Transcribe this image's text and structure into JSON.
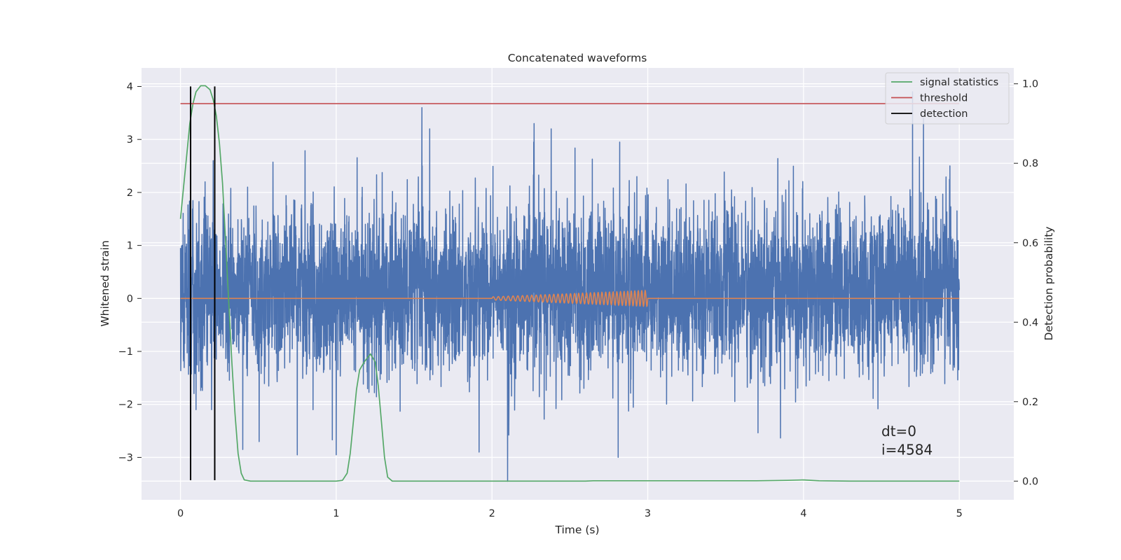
{
  "chart_data": {
    "type": "line",
    "title": "Concatenated waveforms",
    "xlabel": "Time (s)",
    "ylabel": "Whitened strain",
    "y2label": "Detection probability",
    "xlim": [
      -0.25,
      5.35
    ],
    "ylim": [
      -3.8,
      4.35
    ],
    "y2lim": [
      -0.047,
      1.04
    ],
    "xticks": [
      0,
      1,
      2,
      3,
      4,
      5
    ],
    "yticks": [
      -3,
      -2,
      -1,
      0,
      1,
      2,
      3,
      4
    ],
    "y2ticks": [
      0.0,
      0.2,
      0.4,
      0.6,
      0.8,
      1.0
    ],
    "xtick_labels": [
      "0",
      "1",
      "2",
      "3",
      "4",
      "5"
    ],
    "ytick_labels": [
      "−3",
      "−2",
      "−1",
      "0",
      "1",
      "2",
      "3",
      "4"
    ],
    "y2tick_labels": [
      "0.0",
      "0.2",
      "0.4",
      "0.6",
      "0.8",
      "1.0"
    ],
    "grid": true,
    "legend_position": "top-right",
    "series": [
      {
        "kind": "noise",
        "axis": "left",
        "color": "#4c72b0",
        "x_range": [
          0,
          5
        ],
        "typical_range": [
          -1.8,
          2.3
        ],
        "peaks": [
          {
            "x": 0.21,
            "y": 2.6
          },
          {
            "x": 1.55,
            "y": 3.6
          },
          {
            "x": 1.6,
            "y": 3.2
          },
          {
            "x": 2.27,
            "y": 3.3
          },
          {
            "x": 2.38,
            "y": 3.2
          },
          {
            "x": 2.82,
            "y": 2.95
          },
          {
            "x": 4.7,
            "y": 3.9
          },
          {
            "x": 4.77,
            "y": 3.4
          },
          {
            "x": 2.1,
            "y": -3.45
          },
          {
            "x": 2.81,
            "y": -3.0
          },
          {
            "x": 0.75,
            "y": -2.95
          },
          {
            "x": 1.0,
            "y": -2.95
          },
          {
            "x": 0.4,
            "y": -2.85
          },
          {
            "x": 0.1,
            "y": -2.1
          },
          {
            "x": 0.2,
            "y": -2.1
          }
        ]
      },
      {
        "kind": "chirp",
        "axis": "left",
        "color": "#dd8452",
        "x_range": [
          0,
          5
        ],
        "chirp_range": [
          2.0,
          3.0
        ],
        "amplitude_start": 0.03,
        "amplitude_end": 0.15,
        "cycles": 38
      },
      {
        "name": "signal statistics",
        "axis": "right",
        "color": "#55a868",
        "points": [
          [
            0,
            0.66
          ],
          [
            0.02,
            0.74
          ],
          [
            0.04,
            0.82
          ],
          [
            0.06,
            0.9
          ],
          [
            0.08,
            0.95
          ],
          [
            0.1,
            0.98
          ],
          [
            0.13,
            0.995
          ],
          [
            0.16,
            0.995
          ],
          [
            0.19,
            0.985
          ],
          [
            0.21,
            0.96
          ],
          [
            0.23,
            0.92
          ],
          [
            0.25,
            0.85
          ],
          [
            0.27,
            0.75
          ],
          [
            0.29,
            0.6
          ],
          [
            0.31,
            0.45
          ],
          [
            0.33,
            0.3
          ],
          [
            0.35,
            0.17
          ],
          [
            0.37,
            0.07
          ],
          [
            0.39,
            0.02
          ],
          [
            0.41,
            0.003
          ],
          [
            0.45,
            0.0
          ],
          [
            1.0,
            0.0
          ],
          [
            1.04,
            0.002
          ],
          [
            1.07,
            0.02
          ],
          [
            1.09,
            0.07
          ],
          [
            1.11,
            0.15
          ],
          [
            1.13,
            0.23
          ],
          [
            1.15,
            0.28
          ],
          [
            1.18,
            0.3
          ],
          [
            1.22,
            0.32
          ],
          [
            1.25,
            0.3
          ],
          [
            1.27,
            0.24
          ],
          [
            1.29,
            0.15
          ],
          [
            1.31,
            0.06
          ],
          [
            1.33,
            0.01
          ],
          [
            1.36,
            0.0
          ],
          [
            2.6,
            0.0
          ],
          [
            2.65,
            0.001
          ],
          [
            3.7,
            0.001
          ],
          [
            3.9,
            0.002
          ],
          [
            4.0,
            0.003
          ],
          [
            4.1,
            0.001
          ],
          [
            4.3,
            0.0
          ],
          [
            5.0,
            0.0
          ]
        ]
      },
      {
        "name": "threshold",
        "axis": "right",
        "color": "#c44e52",
        "y": 0.95,
        "x_range": [
          0,
          5
        ]
      },
      {
        "name": "detection",
        "axis": "left",
        "color": "#000000",
        "x_positions": [
          0.065,
          0.22
        ],
        "y_range": [
          -3.43,
          4.0
        ]
      }
    ],
    "annotations": [
      {
        "text": "dt=0",
        "x": 4.5,
        "y": -2.6
      },
      {
        "text": "i=4584",
        "x": 4.5,
        "y": -2.95
      }
    ]
  }
}
